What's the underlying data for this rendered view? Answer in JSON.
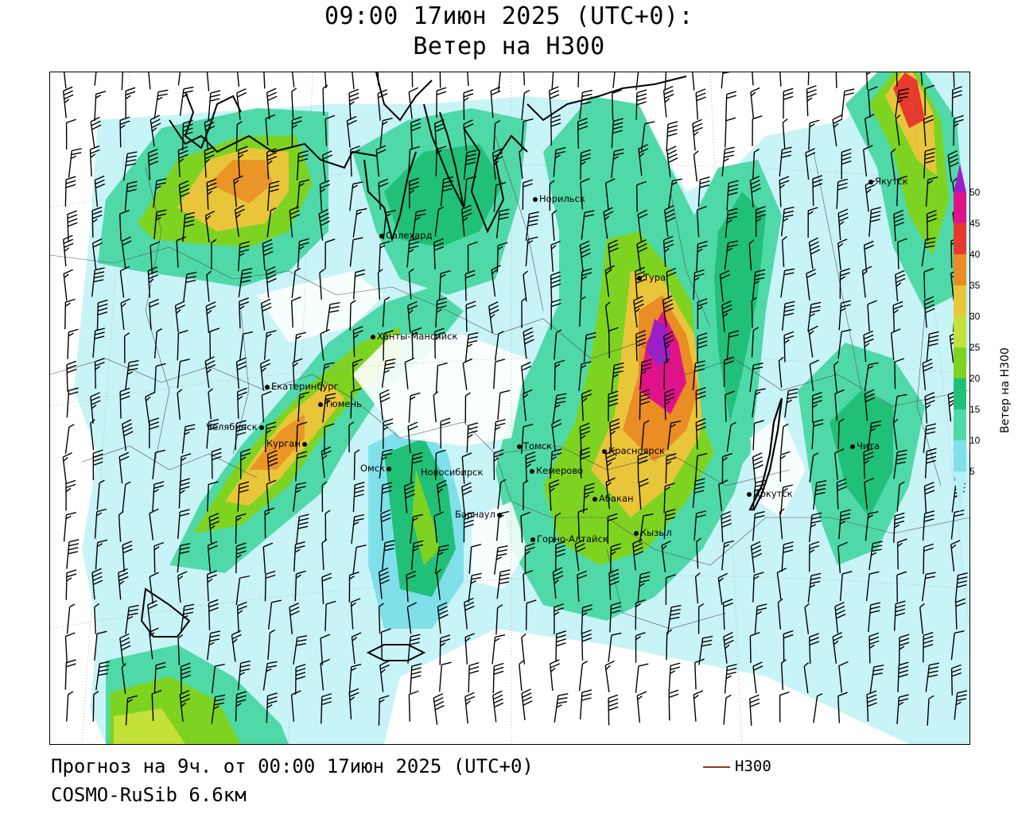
{
  "header": {
    "title_line1": "09:00 17июн 2025 (UTC+0):",
    "title_line2": "Ветер на H300"
  },
  "footer": {
    "forecast": "Прогноз на 9ч. от 00:00 17июн 2025 (UTC+0)",
    "model": "COSMO-RuSib 6.6км",
    "legend_label": "H300"
  },
  "colorbar": {
    "label": "Ветер на H300",
    "ticks": [
      "5",
      "10",
      "15",
      "20",
      "25",
      "30",
      "35",
      "40",
      "45",
      "50"
    ],
    "colors": [
      "#b4f0f5",
      "#7fe0ea",
      "#4fd9a8",
      "#21c079",
      "#7ed321",
      "#c4e03a",
      "#e9c53a",
      "#ea8d24",
      "#e8392e",
      "#e0128a",
      "#9b1fc8"
    ]
  },
  "cities": [
    {
      "name": "Норильск"
    },
    {
      "name": "Салехард"
    },
    {
      "name": "Ханты-Мансийск"
    },
    {
      "name": "Екатеринбург"
    },
    {
      "name": "Тюмень"
    },
    {
      "name": "Челябинск"
    },
    {
      "name": "Курган"
    },
    {
      "name": "Омск"
    },
    {
      "name": "Новосибирск"
    },
    {
      "name": "Томск"
    },
    {
      "name": "Кемерово"
    },
    {
      "name": "Барнаул"
    },
    {
      "name": "Горно-Алтайск"
    },
    {
      "name": "Красноярск"
    },
    {
      "name": "Абакан"
    },
    {
      "name": "Кызыл"
    },
    {
      "name": "Тура"
    },
    {
      "name": "Иркутск"
    },
    {
      "name": "Чита"
    },
    {
      "name": "Якутск"
    }
  ]
}
